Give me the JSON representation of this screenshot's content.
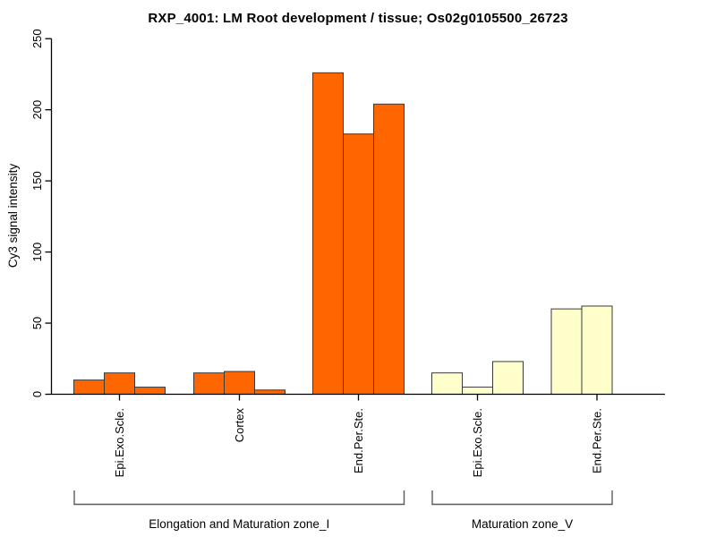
{
  "chart_data": {
    "type": "bar",
    "title": "RXP_4001: LM Root development / tissue; Os02g0105500_26723",
    "ylabel": "Cy3 signal intensity",
    "ylim": [
      0,
      250
    ],
    "yticks": [
      0,
      50,
      100,
      150,
      200,
      250
    ],
    "grid": false,
    "bar_colors": {
      "orange": "#FF6600",
      "light_yellow": "#FFFFCC"
    },
    "groups": [
      {
        "tissue": "Epi.Exo.Scle.",
        "zone": "Elongation and Maturation zone_I",
        "color": "#FF6600",
        "values": [
          10,
          15,
          5
        ]
      },
      {
        "tissue": "Cortex",
        "zone": "Elongation and Maturation zone_I",
        "color": "#FF6600",
        "values": [
          15,
          16,
          3
        ]
      },
      {
        "tissue": "End.Per.Ste.",
        "zone": "Elongation and Maturation zone_I",
        "color": "#FF6600",
        "values": [
          226,
          183,
          204
        ]
      },
      {
        "tissue": "Epi.Exo.Scle.",
        "zone": "Maturation zone_V",
        "color": "#FFFFCC",
        "values": [
          15,
          5,
          23
        ]
      },
      {
        "tissue": "End.Per.Ste.",
        "zone": "Maturation zone_V",
        "color": "#FFFFCC",
        "values": [
          60,
          62
        ]
      }
    ],
    "zone_brackets": [
      {
        "label": "Elongation and Maturation zone_I",
        "group_span": [
          0,
          2
        ]
      },
      {
        "label": "Maturation zone_V",
        "group_span": [
          3,
          4
        ]
      }
    ]
  }
}
